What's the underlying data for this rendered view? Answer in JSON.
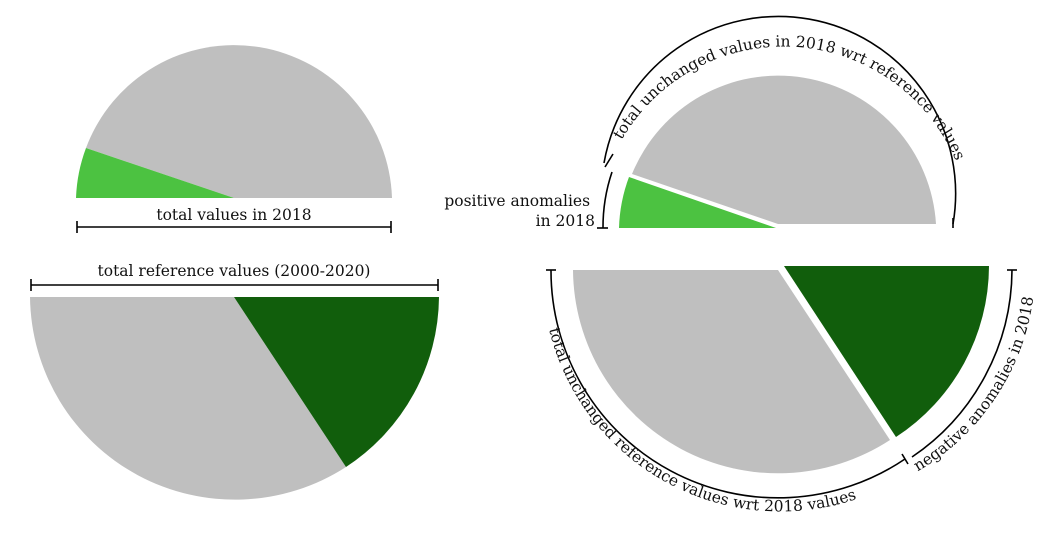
{
  "colors": {
    "unchanged": "#bfbfbf",
    "positive": "#4cc241",
    "negative": "#115e0c",
    "bracket": "#000000",
    "text": "#111111"
  },
  "left_panel": {
    "top_label": "total values in 2018",
    "bottom_label": "total reference values (2000-2020)"
  },
  "right_panel": {
    "top_arc_label": "total unchanged values in 2018 wrt reference values",
    "positive_label_line1": "positive anomalies",
    "positive_label_line2": "in 2018",
    "bottom_arc_label": "total unchanged reference values wrt 2018 values",
    "negative_arc_label": "negative anomalies in 2018"
  }
}
